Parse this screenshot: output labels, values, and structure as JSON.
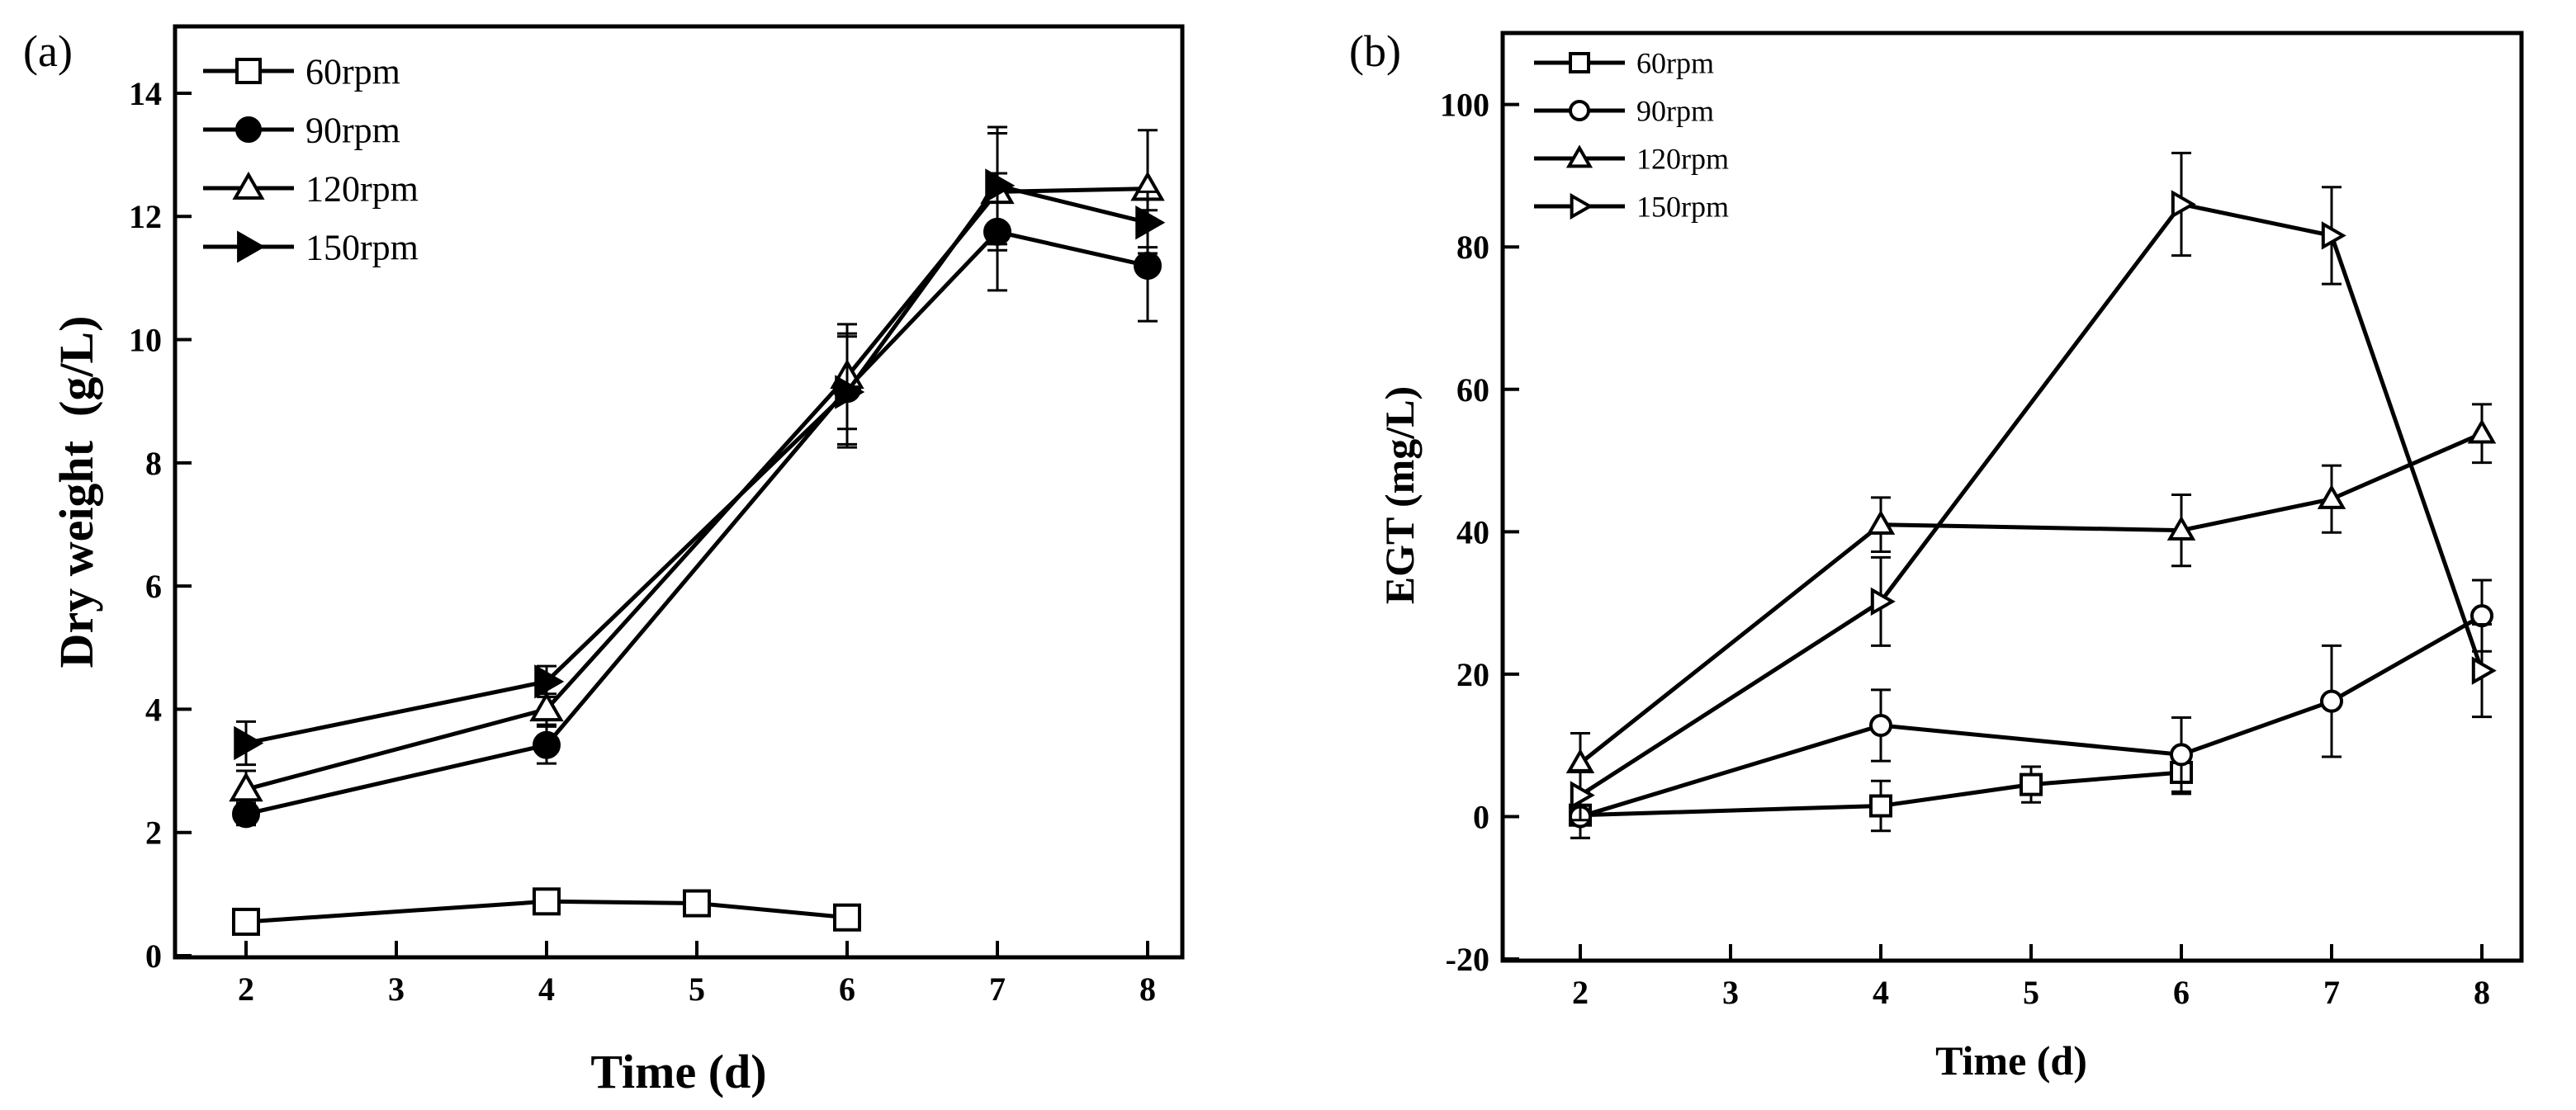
{
  "chart_data": [
    {
      "type": "line",
      "panel_label": "(a)",
      "title": "",
      "xlabel": "Time (d)",
      "ylabel": "Dry weight  (g/L)",
      "categories": [
        "2",
        "3",
        "4",
        "5",
        "6",
        "7",
        "8"
      ],
      "ylim": [
        0,
        15
      ],
      "yticks": [
        0,
        2,
        4,
        6,
        8,
        10,
        12,
        14
      ],
      "grid": false,
      "legend_position": "top-left",
      "series": [
        {
          "name": "60rpm",
          "marker": "square-open",
          "x": [
            "2",
            "4",
            "5",
            "6"
          ],
          "values": [
            0.55,
            0.88,
            0.85,
            0.62
          ],
          "errors": [
            0.2,
            0.15,
            0.13,
            0.18
          ]
        },
        {
          "name": "90rpm",
          "marker": "circle-filled",
          "x": [
            "2",
            "4",
            "6",
            "7",
            "8"
          ],
          "values": [
            2.3,
            3.42,
            9.2,
            11.75,
            11.2
          ],
          "errors": [
            0.18,
            0.3,
            0.9,
            0.95,
            0.9
          ]
        },
        {
          "name": "120rpm",
          "marker": "triangle-up-open",
          "x": [
            "2",
            "4",
            "6",
            "7",
            "8"
          ],
          "values": [
            2.7,
            4.0,
            9.4,
            12.4,
            12.45
          ],
          "errors": [
            0.3,
            0.25,
            0.85,
            0.95,
            0.95
          ]
        },
        {
          "name": "150rpm",
          "marker": "triangle-right-filled",
          "x": [
            "2",
            "4",
            "6",
            "7",
            "8"
          ],
          "values": [
            3.45,
            4.45,
            9.15,
            12.5,
            11.9
          ],
          "errors": [
            0.35,
            0.25,
            0.9,
            0.95,
            0.5
          ]
        }
      ]
    },
    {
      "type": "line",
      "panel_label": "(b)",
      "title": "",
      "xlabel": "Time (d)",
      "ylabel": "EGT (mg/L)",
      "categories": [
        "2",
        "3",
        "4",
        "5",
        "6",
        "7",
        "8"
      ],
      "ylim": [
        -20,
        110
      ],
      "yticks": [
        -20,
        0,
        20,
        40,
        60,
        80,
        100
      ],
      "grid": false,
      "legend_position": "top-left",
      "series": [
        {
          "name": "60rpm",
          "marker": "square-open",
          "x": [
            "2",
            "4",
            "5",
            "6"
          ],
          "values": [
            0.2,
            1.5,
            4.5,
            6.2
          ],
          "errors": [
            3.2,
            3.5,
            2.5,
            3.0
          ]
        },
        {
          "name": "90rpm",
          "marker": "circle-open",
          "x": [
            "2",
            "4",
            "6",
            "7",
            "8"
          ],
          "values": [
            0.0,
            12.8,
            8.7,
            16.2,
            28.2
          ],
          "errors": [
            3.0,
            5.0,
            5.2,
            7.8,
            5.0
          ]
        },
        {
          "name": "120rpm",
          "marker": "triangle-up-open",
          "x": [
            "2",
            "4",
            "6",
            "7",
            "8"
          ],
          "values": [
            7.5,
            41.0,
            40.2,
            44.6,
            53.8
          ],
          "errors": [
            4.2,
            3.8,
            5.0,
            4.7,
            4.1
          ]
        },
        {
          "name": "150rpm",
          "marker": "triangle-right-open",
          "x": [
            "2",
            "4",
            "6",
            "7",
            "8"
          ],
          "values": [
            3.0,
            30.2,
            86.0,
            81.6,
            20.5
          ],
          "errors": [
            3.5,
            6.2,
            7.2,
            6.8,
            6.5
          ]
        }
      ]
    }
  ]
}
